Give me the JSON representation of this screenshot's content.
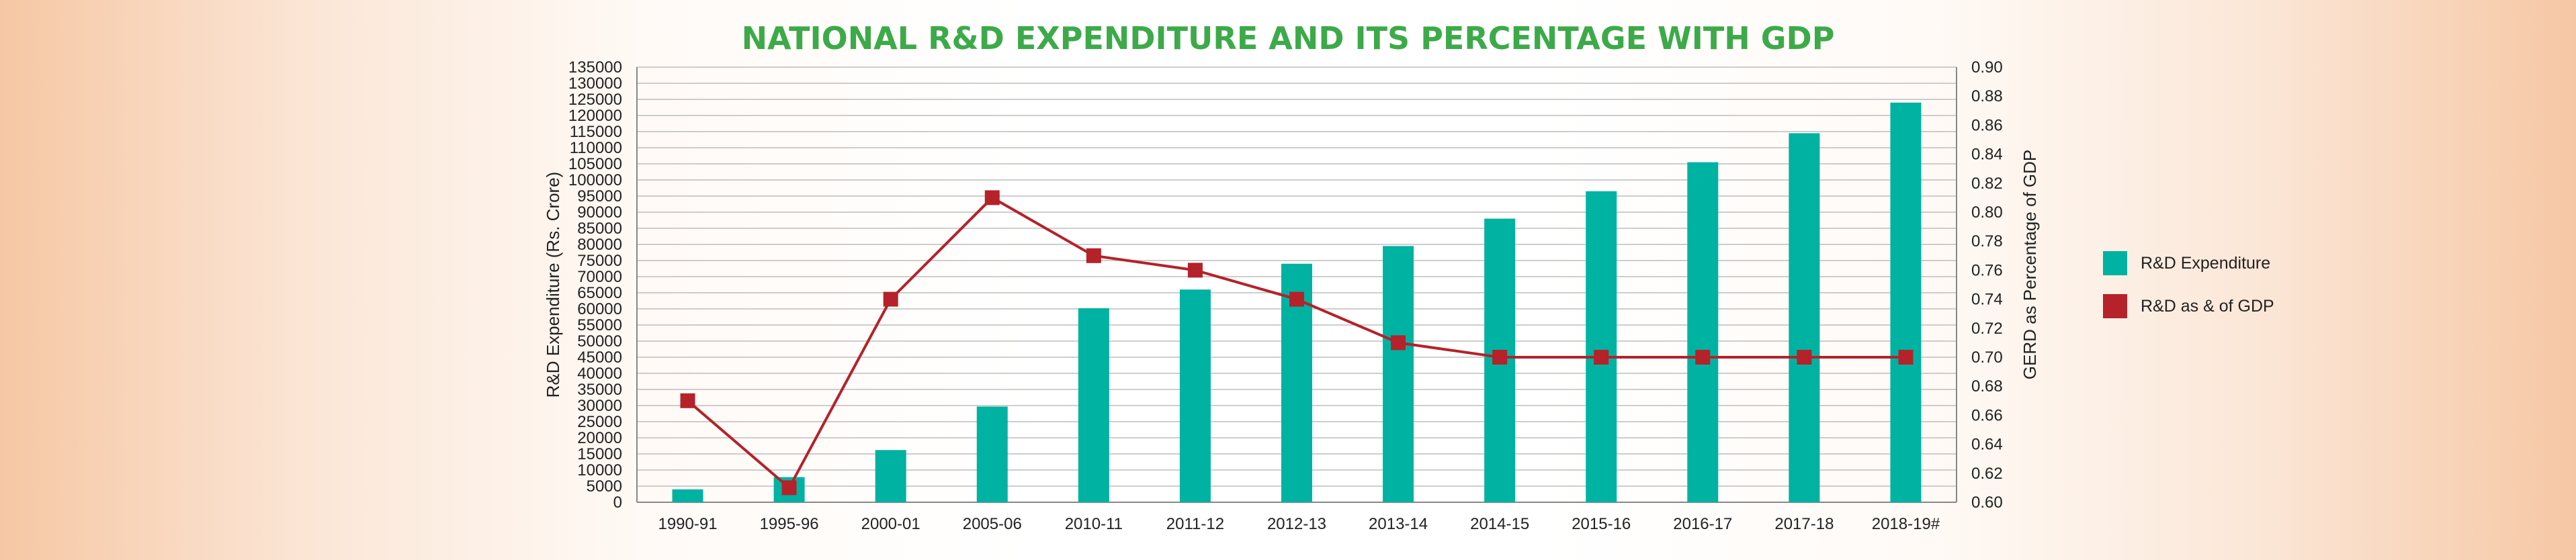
{
  "chart_data": {
    "type": "bar",
    "title": "NATIONAL R&D EXPENDITURE AND ITS PERCENTAGE WITH GDP",
    "categories": [
      "1990-91",
      "1995-96",
      "2000-01",
      "2005-06",
      "2010-11",
      "2011-12",
      "2012-13",
      "2013-14",
      "2014-15",
      "2015-16",
      "2016-17",
      "2017-18",
      "2018-19#"
    ],
    "series": [
      {
        "name": "R&D Expenditure",
        "type": "bar",
        "axis": "left",
        "color": "#00b2a2",
        "values": [
          4000,
          7800,
          16200,
          29700,
          60200,
          66000,
          74000,
          79500,
          88000,
          96500,
          105500,
          114500,
          124000
        ]
      },
      {
        "name": "R&D as & of GDP",
        "type": "line",
        "axis": "right",
        "color": "#b5222a",
        "values": [
          0.67,
          0.61,
          0.74,
          0.81,
          0.77,
          0.76,
          0.74,
          0.71,
          0.7,
          0.7,
          0.7,
          0.7,
          0.7
        ]
      }
    ],
    "ylabel": "R&D Expenditure (Rs. Crore)",
    "ylim": [
      0,
      135000
    ],
    "yticks": [
      "0",
      "5000",
      "10000",
      "15000",
      "20000",
      "25000",
      "30000",
      "35000",
      "40000",
      "45000",
      "50000",
      "55000",
      "60000",
      "65000",
      "70000",
      "75000",
      "80000",
      "85000",
      "90000",
      "95000",
      "100000",
      "105000",
      "110000",
      "115000",
      "120000",
      "125000",
      "130000",
      "135000"
    ],
    "y2label": "GERD as Percentage of GDP",
    "y2lim": [
      0.6,
      0.9
    ],
    "y2ticks": [
      "0.60",
      "0.62",
      "0.64",
      "0.66",
      "0.68",
      "0.70",
      "0.72",
      "0.74",
      "0.76",
      "0.78",
      "0.80",
      "0.82",
      "0.84",
      "0.86",
      "0.88",
      "0.90"
    ],
    "grid": true,
    "legend_position": "right"
  }
}
